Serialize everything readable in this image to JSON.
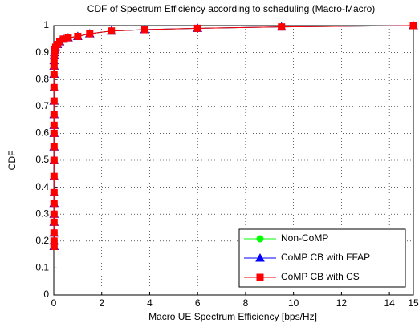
{
  "chart_data": {
    "type": "line",
    "title": "CDF of Spectrum Efficiency according to scheduling (Macro-Macro)",
    "x_label": "Macro UE Spectrum Efficiency [bps/Hz]",
    "y_label": "CDF",
    "x": [
      0.01,
      0.01,
      0.01,
      0.01,
      0.01,
      0.01,
      0.01,
      0.01,
      0.01,
      0.01,
      0.01,
      0.01,
      0.01,
      0.01,
      0.01,
      0.01,
      0.01,
      0.01,
      0.02,
      0.03,
      0.05,
      0.08,
      0.15,
      0.25,
      0.4,
      0.6,
      1,
      1.5,
      2.4,
      3.8,
      6,
      9.5,
      15
    ],
    "series": [
      {
        "name": "Non-CoMP",
        "color": "#00ff00",
        "marker": "circle",
        "values": [
          0.18,
          0.2,
          0.23,
          0.27,
          0.3,
          0.34,
          0.38,
          0.44,
          0.5,
          0.55,
          0.6,
          0.63,
          0.67,
          0.72,
          0.77,
          0.82,
          0.85,
          0.87,
          0.89,
          0.9,
          0.91,
          0.92,
          0.93,
          0.94,
          0.95,
          0.955,
          0.96,
          0.97,
          0.98,
          0.985,
          0.99,
          0.995,
          1
        ]
      },
      {
        "name": "CoMP CB with FFAP",
        "color": "#0000ff",
        "marker": "triangle",
        "values": [
          0.18,
          0.2,
          0.23,
          0.27,
          0.3,
          0.34,
          0.38,
          0.44,
          0.5,
          0.55,
          0.6,
          0.63,
          0.67,
          0.72,
          0.77,
          0.82,
          0.85,
          0.87,
          0.89,
          0.9,
          0.91,
          0.92,
          0.93,
          0.94,
          0.95,
          0.955,
          0.96,
          0.97,
          0.98,
          0.985,
          0.99,
          0.995,
          1
        ]
      },
      {
        "name": "CoMP CB with CS",
        "color": "#ff0000",
        "marker": "square",
        "values": [
          0.18,
          0.2,
          0.23,
          0.27,
          0.3,
          0.34,
          0.38,
          0.44,
          0.5,
          0.55,
          0.6,
          0.63,
          0.67,
          0.72,
          0.77,
          0.82,
          0.85,
          0.87,
          0.89,
          0.9,
          0.91,
          0.92,
          0.93,
          0.94,
          0.95,
          0.955,
          0.96,
          0.97,
          0.98,
          0.985,
          0.99,
          0.995,
          1
        ]
      }
    ],
    "xlim": [
      0,
      15
    ],
    "xticks": [
      0,
      2,
      4,
      6,
      8,
      10,
      12,
      14,
      15
    ],
    "ylim": [
      0,
      1
    ],
    "yticks": [
      0,
      0.1,
      0.2,
      0.3,
      0.4,
      0.5,
      0.6,
      0.7,
      0.8,
      0.9,
      1
    ],
    "grid": true,
    "legend": "lower right"
  }
}
